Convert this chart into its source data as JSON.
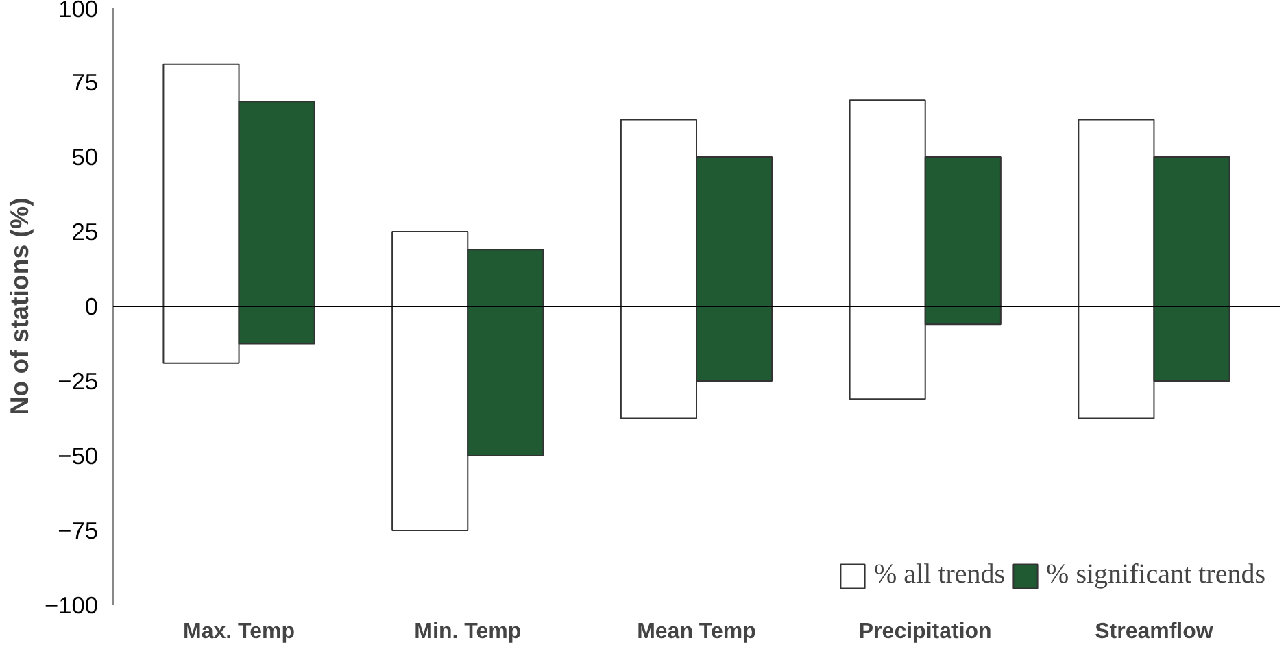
{
  "chart_data": {
    "type": "bar",
    "ylabel": "No of stations (%)",
    "categories": [
      "Max. Temp",
      "Min. Temp",
      "Mean Temp",
      "Precipitation",
      "Streamflow"
    ],
    "series": [
      {
        "name": "% all trends",
        "color": "#ffffff",
        "base": [
          -19,
          -75,
          -37.5,
          -31,
          -37.5
        ],
        "values": [
          100,
          100,
          100,
          100,
          100
        ]
      },
      {
        "name": "% significant trends",
        "color": "#1f5a32",
        "base": [
          -12.5,
          -50,
          -25,
          -6,
          -25
        ],
        "values": [
          81,
          69,
          75,
          56,
          75
        ]
      }
    ],
    "ylim": [
      -100,
      100
    ],
    "yticks": [
      -100,
      -75,
      -50,
      -25,
      0,
      25,
      50,
      75,
      100
    ],
    "ref_lines": [
      {
        "axis": "y",
        "value": 0,
        "color": "#000000"
      }
    ],
    "grid": false,
    "legend": "bottom right"
  }
}
